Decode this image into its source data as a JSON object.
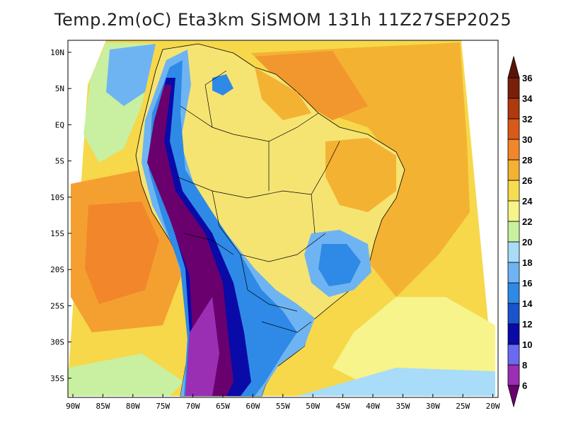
{
  "title": "Temp.2m(oC) Eta3km SiSMOM 131h 11Z27SEP2025",
  "map": {
    "lat_range": [
      -38,
      12
    ],
    "lon_range": [
      -91,
      -19
    ],
    "lat_ticks": [
      "10N",
      "5N",
      "EQ",
      "5S",
      "10S",
      "15S",
      "20S",
      "25S",
      "30S",
      "35S"
    ],
    "lon_ticks": [
      "90W",
      "85W",
      "80W",
      "75W",
      "70W",
      "65W",
      "60W",
      "55W",
      "50W",
      "45W",
      "40W",
      "35W",
      "30W",
      "25W",
      "20W"
    ]
  },
  "colorbar": {
    "labels": [
      "6",
      "8",
      "10",
      "12",
      "14",
      "16",
      "18",
      "20",
      "22",
      "24",
      "26",
      "28",
      "30",
      "32",
      "34",
      "36"
    ],
    "colors": [
      "#6a006e",
      "#9a2fb4",
      "#6a6af0",
      "#0a0aa8",
      "#1a54cc",
      "#2e8ae6",
      "#6fb4f2",
      "#a8dcf8",
      "#c8f0a0",
      "#f6f48a",
      "#f6dc50",
      "#f4b232",
      "#f2862a",
      "#d85a18",
      "#b03a10",
      "#7a200a",
      "#5a1406"
    ]
  }
}
